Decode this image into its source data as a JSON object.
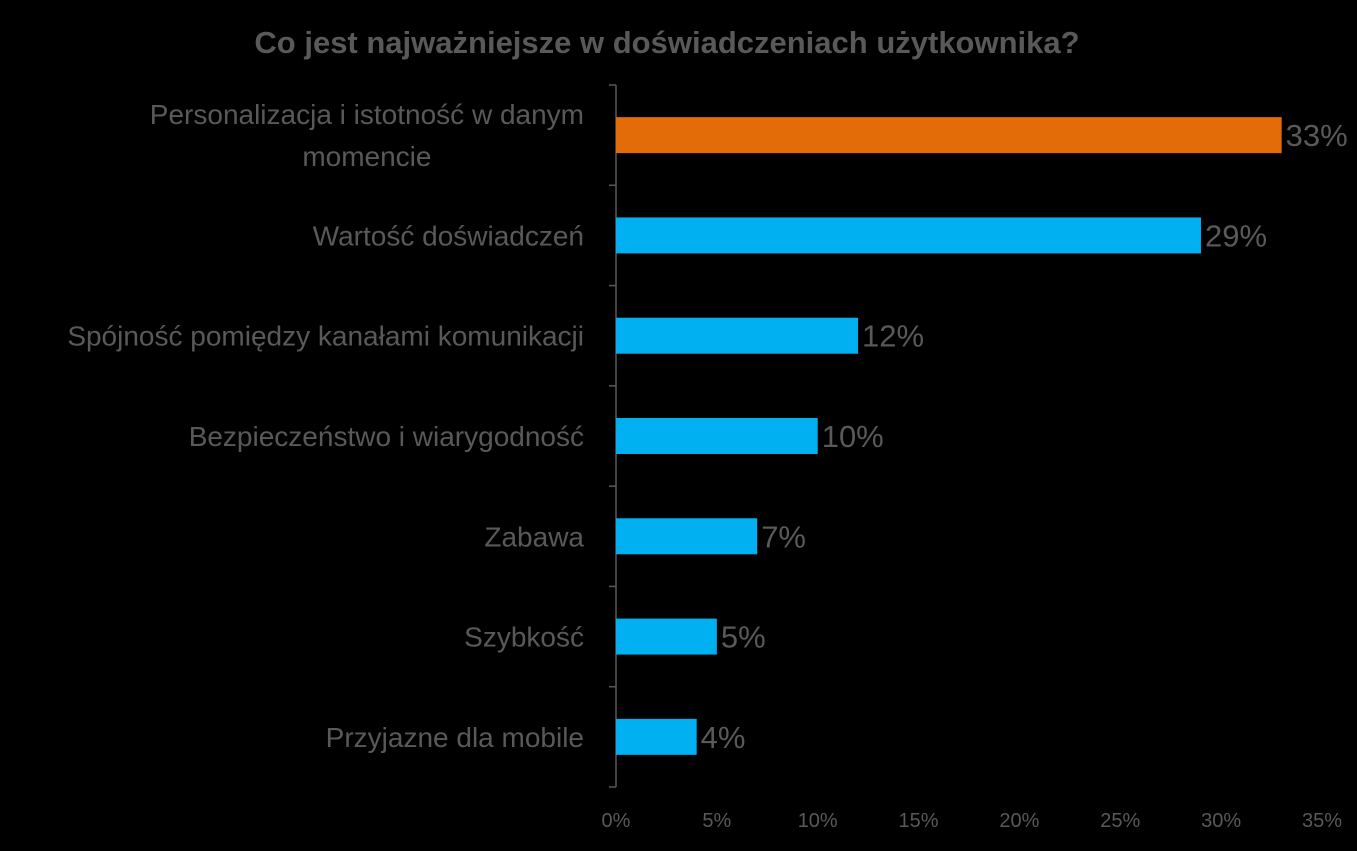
{
  "chart_data": {
    "type": "bar",
    "orientation": "horizontal",
    "title": "Co jest najważniejsze w doświadczeniach użytkownika?",
    "xlabel": "",
    "ylabel": "",
    "xlim": [
      0,
      35
    ],
    "xticks": [
      "0%",
      "5%",
      "10%",
      "15%",
      "20%",
      "25%",
      "30%",
      "35%"
    ],
    "categories": [
      [
        "Personalizacja i istotność w danym",
        "momencie"
      ],
      [
        "Wartość doświadczeń"
      ],
      [
        "Spójność pomiędzy kanałami komunikacji"
      ],
      [
        "Bezpieczeństwo i wiarygodność"
      ],
      [
        "Zabawa"
      ],
      [
        "Szybkość"
      ],
      [
        "Przyjazne dla mobile"
      ]
    ],
    "values": [
      33,
      29,
      12,
      10,
      7,
      5,
      4
    ],
    "value_labels": [
      "33%",
      "29%",
      "12%",
      "10%",
      "7%",
      "5%",
      "4%"
    ],
    "colors": [
      "#E36C09",
      "#00B0F0",
      "#00B0F0",
      "#00B0F0",
      "#00B0F0",
      "#00B0F0",
      "#00B0F0"
    ],
    "grid": false,
    "legend": "none",
    "axis_color": "#595959",
    "text_color": "#595959",
    "background": "#000000"
  }
}
